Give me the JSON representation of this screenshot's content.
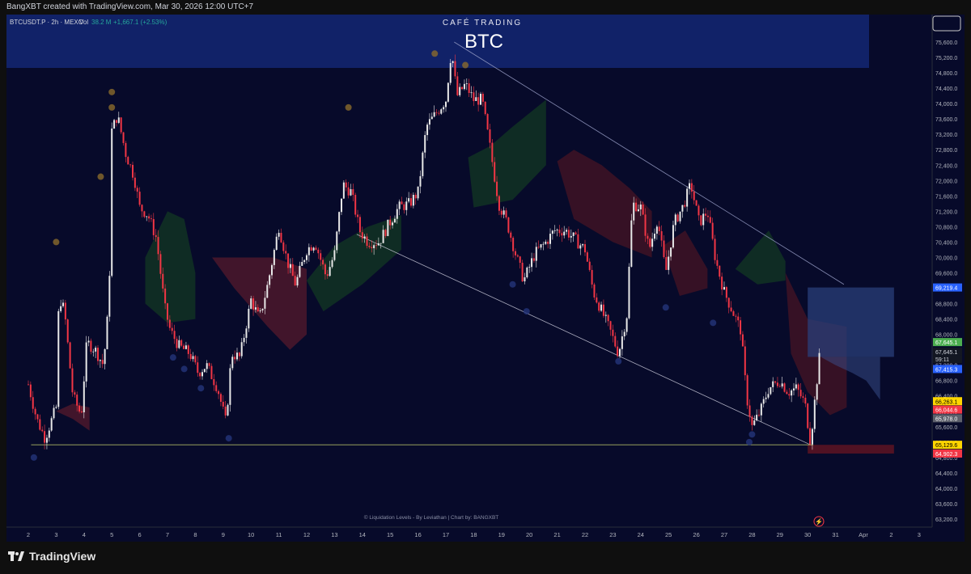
{
  "header": {
    "created_line": "BangXBT created with TradingView.com, Mar 30, 2026 12:00 UTC+7"
  },
  "legend": {
    "symbol": "BTCUSDT.P · 2h · MEXC",
    "vol_label": "Vol",
    "vol_value": "38.2 M",
    "change": "+1,667.1 (+2.53%)"
  },
  "banner": {
    "kicker": "CAFÉ TRADING",
    "title": "BTC"
  },
  "attribution": "© Liquidation Levels - By Leviathan | Chart by: BANGXBT",
  "brand": "TradingView",
  "colors": {
    "background": "#070a2a",
    "up": "#e8e8e8",
    "down": "#f23645",
    "price_badge_green": "#4caf50",
    "price_badge_blue": "#2962ff",
    "price_badge_yellow": "#ffd600",
    "price_badge_red": "#f23645"
  },
  "chart_data": {
    "type": "candlestick",
    "title": "BTC",
    "x_ticks": [
      "2",
      "3",
      "4",
      "5",
      "6",
      "7",
      "8",
      "9",
      "10",
      "11",
      "12",
      "13",
      "14",
      "15",
      "16",
      "17",
      "18",
      "19",
      "20",
      "21",
      "22",
      "23",
      "24",
      "25",
      "26",
      "27",
      "28",
      "29",
      "30",
      "31",
      "Apr",
      "2",
      "3"
    ],
    "y_ticks": [
      "75,600.0",
      "75,200.0",
      "74,800.0",
      "74,400.0",
      "74,000.0",
      "73,600.0",
      "73,200.0",
      "72,800.0",
      "72,400.0",
      "72,000.0",
      "71,600.0",
      "71,200.0",
      "70,800.0",
      "70,400.0",
      "70,000.0",
      "69,600.0",
      "69,200.0",
      "68,800.0",
      "68,400.0",
      "68,000.0",
      "67,600.0",
      "67,200.0",
      "66,800.0",
      "66,400.0",
      "66,000.0",
      "65,600.0",
      "65,200.0",
      "64,800.0",
      "64,400.0",
      "64,000.0",
      "63,600.0",
      "63,200.0"
    ],
    "ylim": [
      63000,
      75900
    ],
    "price_labels": [
      {
        "text": "69,219.4",
        "price": 69219.4,
        "color": "#2962ff"
      },
      {
        "text": "67,645.1",
        "price": 67800,
        "color": "#4caf50"
      },
      {
        "text": "67,645.1",
        "price": 67550,
        "color": "#131722",
        "color_text": "#d1d4dc"
      },
      {
        "text": "59:11",
        "price": 67360,
        "color": "#131722",
        "color_text": "#d1d4dc"
      },
      {
        "text": "67,415.3",
        "price": 67100,
        "color": "#2962ff"
      },
      {
        "text": "66,263.1",
        "price": 66263.1,
        "color": "#ffd600",
        "color_text": "#000000"
      },
      {
        "text": "66,044.6",
        "price": 66044.6,
        "color": "#f23645"
      },
      {
        "text": "65,978.0",
        "price": 65820,
        "color": "#5d606b"
      },
      {
        "text": "65,129.6",
        "price": 65129.6,
        "color": "#ffd600",
        "color_text": "#000000"
      },
      {
        "text": "64,902.3",
        "price": 64902.3,
        "color": "#f23645"
      }
    ],
    "keypoints": [
      [
        2.0,
        66700
      ],
      [
        2.3,
        65800
      ],
      [
        2.6,
        65300
      ],
      [
        3.0,
        66100
      ],
      [
        3.1,
        69000
      ],
      [
        3.3,
        68600
      ],
      [
        3.6,
        66400
      ],
      [
        3.9,
        65900
      ],
      [
        4.1,
        67800
      ],
      [
        4.4,
        67600
      ],
      [
        4.7,
        67200
      ],
      [
        4.9,
        68900
      ],
      [
        5.0,
        73300
      ],
      [
        5.2,
        73700
      ],
      [
        5.5,
        72700
      ],
      [
        5.8,
        72100
      ],
      [
        6.0,
        71300
      ],
      [
        6.3,
        71100
      ],
      [
        6.6,
        70500
      ],
      [
        6.9,
        68700
      ],
      [
        7.1,
        68100
      ],
      [
        7.4,
        67700
      ],
      [
        7.8,
        67500
      ],
      [
        8.1,
        67000
      ],
      [
        8.4,
        67200
      ],
      [
        8.8,
        66600
      ],
      [
        9.1,
        65700
      ],
      [
        9.3,
        67500
      ],
      [
        9.6,
        67400
      ],
      [
        10.0,
        68900
      ],
      [
        10.3,
        68400
      ],
      [
        10.6,
        69300
      ],
      [
        11.0,
        70800
      ],
      [
        11.3,
        69900
      ],
      [
        11.6,
        69300
      ],
      [
        12.0,
        70200
      ],
      [
        12.3,
        70400
      ],
      [
        12.7,
        69500
      ],
      [
        13.0,
        70100
      ],
      [
        13.3,
        71900
      ],
      [
        13.6,
        71700
      ],
      [
        13.9,
        70700
      ],
      [
        14.2,
        70400
      ],
      [
        14.6,
        70400
      ],
      [
        14.9,
        70800
      ],
      [
        15.3,
        71300
      ],
      [
        15.7,
        71400
      ],
      [
        16.0,
        71700
      ],
      [
        16.3,
        73400
      ],
      [
        16.6,
        73700
      ],
      [
        17.0,
        74100
      ],
      [
        17.2,
        75400
      ],
      [
        17.4,
        74200
      ],
      [
        17.7,
        74500
      ],
      [
        18.0,
        74100
      ],
      [
        18.3,
        74100
      ],
      [
        18.6,
        72800
      ],
      [
        18.9,
        71400
      ],
      [
        19.2,
        70900
      ],
      [
        19.5,
        70100
      ],
      [
        19.8,
        69400
      ],
      [
        20.2,
        70100
      ],
      [
        20.6,
        70400
      ],
      [
        20.9,
        70700
      ],
      [
        21.3,
        70700
      ],
      [
        21.6,
        70500
      ],
      [
        22.0,
        70200
      ],
      [
        22.3,
        69100
      ],
      [
        22.6,
        68600
      ],
      [
        22.9,
        68100
      ],
      [
        23.2,
        67500
      ],
      [
        23.5,
        68500
      ],
      [
        23.7,
        71400
      ],
      [
        24.0,
        71300
      ],
      [
        24.3,
        70200
      ],
      [
        24.6,
        71000
      ],
      [
        24.9,
        69600
      ],
      [
        25.2,
        70900
      ],
      [
        25.5,
        71300
      ],
      [
        25.8,
        71900
      ],
      [
        26.1,
        70900
      ],
      [
        26.4,
        71200
      ],
      [
        26.7,
        69900
      ],
      [
        27.0,
        69100
      ],
      [
        27.3,
        68600
      ],
      [
        27.6,
        68100
      ],
      [
        27.8,
        66400
      ],
      [
        28.0,
        65600
      ],
      [
        28.3,
        66000
      ],
      [
        28.6,
        66600
      ],
      [
        29.0,
        66800
      ],
      [
        29.3,
        66500
      ],
      [
        29.6,
        66600
      ],
      [
        29.9,
        66200
      ],
      [
        30.1,
        65200
      ],
      [
        30.3,
        66600
      ],
      [
        30.45,
        67600
      ]
    ],
    "trendlines": [
      {
        "from": [
          17.3,
          75600
        ],
        "to": [
          31.3,
          69300
        ],
        "color": "#9aa0c8"
      },
      {
        "from": [
          13.8,
          70600
        ],
        "to": [
          30.1,
          65129.6
        ],
        "color": "#c8c8d8"
      },
      {
        "from": [
          2.1,
          65129.6
        ],
        "to": [
          30.2,
          65129.6
        ],
        "color": "#c8d46e"
      }
    ],
    "zones": [
      {
        "name": "target-box",
        "x0": 30.0,
        "x1": 33.1,
        "y0": 67415,
        "y1": 69219,
        "color": "#2a3f7a"
      },
      {
        "name": "stop-box",
        "x0": 30.0,
        "x1": 33.1,
        "y0": 64902,
        "y1": 65129,
        "color": "#6a1622"
      }
    ]
  }
}
